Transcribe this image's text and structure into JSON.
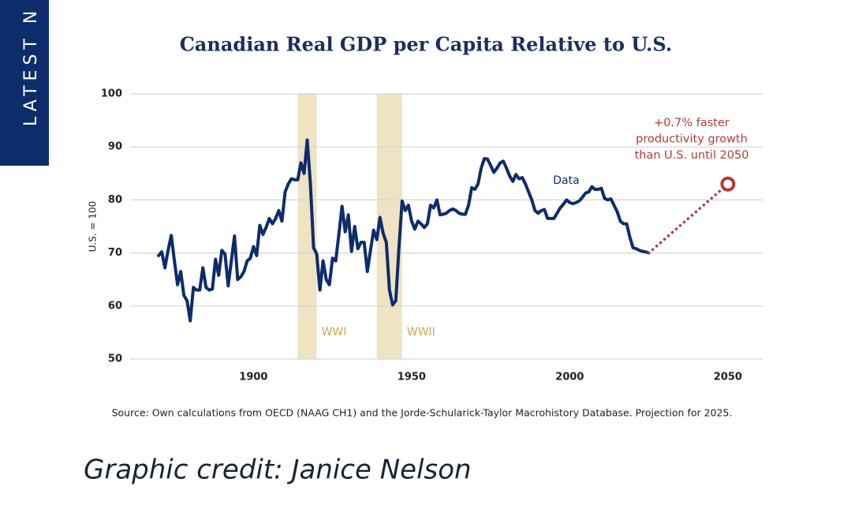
{
  "sidebar": {
    "label": "LATEST N"
  },
  "chart_data": {
    "type": "line",
    "title": "Canadian Real GDP per Capita Relative to U.S.",
    "ylabel": "U.S. = 100",
    "source": "Source: Own calculations from OECD (NAAG CH1) and the Jorde-Schularick-Taylor Macrohistory Database. Projection for 2025.",
    "xlim": [
      1861,
      2061
    ],
    "ylim": [
      50,
      100
    ],
    "xticks": [
      1900,
      1950,
      2000,
      2050
    ],
    "yticks": [
      50,
      60,
      70,
      80,
      90,
      100
    ],
    "grid": true,
    "shaded": [
      {
        "label": "WWI",
        "start": 1914,
        "end": 1920,
        "color": "#efe3c4"
      },
      {
        "label": "WWII",
        "start": 1939,
        "end": 1947,
        "color": "#efe3c4"
      }
    ],
    "series": [
      {
        "name": "Data",
        "color": "#0d2c6c",
        "style": "solid",
        "x": [
          1870,
          1871,
          1872,
          1873,
          1874,
          1875,
          1876,
          1877,
          1878,
          1879,
          1880,
          1881,
          1882,
          1883,
          1884,
          1885,
          1886,
          1887,
          1888,
          1889,
          1890,
          1891,
          1892,
          1893,
          1894,
          1895,
          1896,
          1897,
          1898,
          1899,
          1900,
          1901,
          1902,
          1903,
          1904,
          1905,
          1906,
          1907,
          1908,
          1909,
          1910,
          1911,
          1912,
          1913,
          1914,
          1915,
          1916,
          1917,
          1918,
          1919,
          1920,
          1921,
          1922,
          1923,
          1924,
          1925,
          1926,
          1927,
          1928,
          1929,
          1930,
          1931,
          1932,
          1933,
          1934,
          1935,
          1936,
          1937,
          1938,
          1939,
          1940,
          1941,
          1942,
          1943,
          1944,
          1945,
          1946,
          1947,
          1948,
          1949,
          1950,
          1951,
          1952,
          1953,
          1954,
          1955,
          1956,
          1957,
          1958,
          1959,
          1960,
          1961,
          1962,
          1963,
          1964,
          1965,
          1966,
          1967,
          1968,
          1969,
          1970,
          1971,
          1972,
          1973,
          1974,
          1975,
          1976,
          1977,
          1978,
          1979,
          1980,
          1981,
          1982,
          1983,
          1984,
          1985,
          1986,
          1987,
          1988,
          1989,
          1990,
          1991,
          1992,
          1993,
          1994,
          1995,
          1996,
          1997,
          1998,
          1999,
          2000,
          2001,
          2002,
          2003,
          2004,
          2005,
          2006,
          2007,
          2008,
          2009,
          2010,
          2011,
          2012,
          2013,
          2014,
          2015,
          2016,
          2017,
          2018,
          2019,
          2020,
          2021,
          2022,
          2023,
          2024,
          2025
        ],
        "values": [
          69.5,
          70.2,
          67.2,
          70.5,
          73.3,
          68.5,
          64,
          66.5,
          62,
          61,
          57.2,
          63.5,
          63,
          63,
          67.2,
          63.5,
          63,
          63.2,
          68.8,
          65.8,
          70.5,
          69.8,
          63.8,
          68.5,
          73.2,
          65,
          65.5,
          66.5,
          68.5,
          69,
          71.2,
          69.5,
          75.2,
          73.5,
          74.8,
          76.5,
          75.5,
          76.5,
          78,
          76,
          81.5,
          83,
          84,
          83.8,
          83.8,
          87,
          85,
          91.3,
          83,
          71,
          69.8,
          63,
          68.5,
          65,
          64,
          69,
          68.5,
          73.5,
          78.8,
          74,
          77.2,
          70.3,
          75,
          70.8,
          72,
          72,
          66.5,
          70.5,
          74.3,
          72.5,
          76.7,
          73.7,
          72,
          63,
          60.2,
          61,
          71,
          79.8,
          78,
          79,
          76,
          74.5,
          76,
          75.5,
          74.8,
          75.5,
          79,
          78.5,
          80,
          77.2,
          77.3,
          77.5,
          78,
          78.3,
          78,
          77.5,
          77.3,
          77.3,
          79,
          82.3,
          82,
          83,
          86,
          87.8,
          87.7,
          86.5,
          85.2,
          86,
          87,
          87.3,
          86,
          84.5,
          83.5,
          84.8,
          84,
          84.2,
          83,
          81.5,
          80,
          78,
          77.5,
          78,
          78.2,
          76.5,
          76.5,
          76.5,
          77.5,
          78.5,
          79.2,
          80,
          79.5,
          79.3,
          79.5,
          79.8,
          80.5,
          81.3,
          81.5,
          82.5,
          82,
          82,
          82.2,
          80.3,
          80,
          80.2,
          79,
          77.8,
          76,
          75.5,
          75.5,
          73,
          71,
          70.8,
          70.5,
          70.3,
          70.2,
          70
        ]
      },
      {
        "name": "+0.7% faster productivity growth than U.S. until 2050",
        "color": "#b23a3a",
        "style": "dotted",
        "x": [
          2025,
          2050
        ],
        "values": [
          70,
          83
        ]
      }
    ],
    "annotation_lines": [
      "+0.7% faster",
      "productivity growth",
      "than U.S. until 2050"
    ]
  },
  "credit": "Graphic credit: Janice Nelson"
}
